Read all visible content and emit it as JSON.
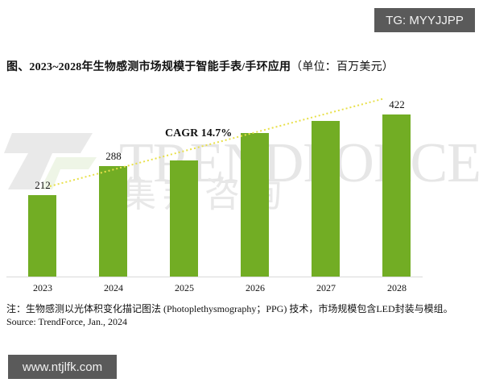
{
  "overlays": {
    "tg_tag": "TG: MYYJJPP",
    "url_tag": "www.ntjlfk.com"
  },
  "title": {
    "main": "图、2023~2028年生物感测市场规模于智能手表/手环应用",
    "unit": "（单位：百万美元）"
  },
  "watermark": {
    "brand": "TRENDFORCE",
    "brand_cn": "集邦咨询"
  },
  "annotation": {
    "cagr": "CAGR 14.7%"
  },
  "footer": {
    "note": "注：生物感测以光体积变化描记图法 (Photoplethysmography；PPG) 技术，市场规模包含LED封装与模组。",
    "source": "Source: TrendForce, Jan., 2024"
  },
  "colors": {
    "bar": "#72ad24",
    "trendline": "#e8e04a",
    "tag_bg": "#5a5a5a"
  },
  "chart_data": {
    "type": "bar",
    "title": "2023~2028年生物感测市场规模于智能手表/手环应用（单位：百万美元）",
    "xlabel": "",
    "ylabel": "百万美元",
    "categories": [
      "2023",
      "2024",
      "2025",
      "2026",
      "2027",
      "2028"
    ],
    "values": [
      212,
      288,
      302,
      374,
      406,
      422
    ],
    "data_labels": [
      "212",
      "288",
      "",
      "",
      "",
      "422"
    ],
    "annotations": [
      "CAGR 14.7%"
    ],
    "trendline": {
      "style": "dotted",
      "from": "2023",
      "to": "2028"
    },
    "ylim": [
      0,
      450
    ],
    "grid": false,
    "legend": null
  }
}
